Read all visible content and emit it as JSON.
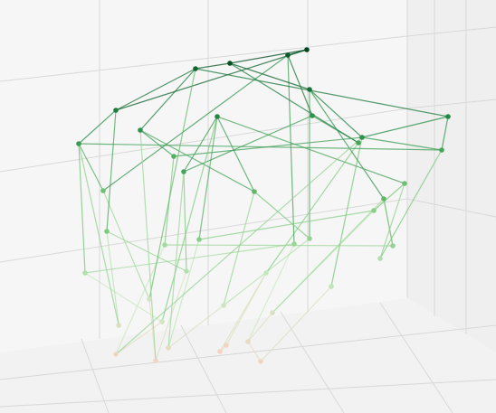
{
  "chart_data": {
    "type": "network3d",
    "zlim": [
      0,
      12.5
    ],
    "colorscale": [
      "#fdd0c0",
      "#c7e9c0",
      "#74c476",
      "#238b45",
      "#00441b"
    ],
    "nodes": [
      [
        2,
        1,
        1
      ],
      [
        3,
        2,
        0.5
      ],
      [
        4,
        0,
        1.5
      ],
      [
        5,
        3,
        0.8
      ],
      [
        3.5,
        1,
        2.2
      ],
      [
        6,
        2,
        1.2
      ],
      [
        2.5,
        3,
        2.5
      ],
      [
        4.5,
        4,
        0.3
      ],
      [
        5.5,
        1,
        2.8
      ],
      [
        7,
        0,
        1
      ],
      [
        1.8,
        2,
        1.8
      ],
      [
        6.5,
        3,
        2
      ],
      [
        1,
        1,
        4
      ],
      [
        8,
        2,
        5
      ],
      [
        3,
        3,
        4.5
      ],
      [
        9,
        1,
        3.5
      ],
      [
        5,
        0,
        5.5
      ],
      [
        10,
        3,
        4
      ],
      [
        6,
        4,
        3.2
      ],
      [
        2,
        0,
        5.8
      ],
      [
        7.5,
        2,
        4.8
      ],
      [
        11,
        1,
        5
      ],
      [
        4,
        2,
        3.8
      ],
      [
        9.5,
        4,
        5.5
      ],
      [
        0.5,
        2,
        8.5
      ],
      [
        2,
        1,
        10
      ],
      [
        4,
        3,
        11
      ],
      [
        6,
        0,
        12
      ],
      [
        8,
        2,
        10.5
      ],
      [
        10,
        1,
        9
      ],
      [
        12,
        3,
        8
      ],
      [
        11,
        0,
        7
      ],
      [
        3,
        4,
        7.5
      ],
      [
        5,
        2,
        9.5
      ],
      [
        7,
        3,
        11.5
      ],
      [
        9,
        4,
        8
      ],
      [
        1,
        3,
        6.5
      ],
      [
        6.5,
        1,
        7
      ],
      [
        12.5,
        2,
        9.5
      ],
      [
        4.5,
        0,
        8
      ],
      [
        8.5,
        0,
        12.5
      ],
      [
        10.5,
        4,
        6.5
      ],
      [
        2.5,
        2,
        9
      ],
      [
        7.5,
        4,
        9
      ]
    ],
    "edges": [
      [
        0,
        14
      ],
      [
        1,
        22
      ],
      [
        2,
        16
      ],
      [
        3,
        18
      ],
      [
        4,
        12
      ],
      [
        5,
        20
      ],
      [
        6,
        36
      ],
      [
        7,
        18
      ],
      [
        8,
        13
      ],
      [
        9,
        15
      ],
      [
        10,
        19
      ],
      [
        11,
        23
      ],
      [
        0,
        4
      ],
      [
        2,
        8
      ],
      [
        5,
        11
      ],
      [
        1,
        6
      ],
      [
        3,
        7
      ],
      [
        9,
        5
      ],
      [
        12,
        24
      ],
      [
        13,
        28
      ],
      [
        14,
        32
      ],
      [
        15,
        29
      ],
      [
        16,
        33
      ],
      [
        17,
        30
      ],
      [
        18,
        35
      ],
      [
        19,
        25
      ],
      [
        20,
        34
      ],
      [
        21,
        31
      ],
      [
        22,
        39
      ],
      [
        23,
        41
      ],
      [
        24,
        25
      ],
      [
        25,
        26
      ],
      [
        26,
        27
      ],
      [
        27,
        28
      ],
      [
        28,
        29
      ],
      [
        29,
        30
      ],
      [
        30,
        38
      ],
      [
        31,
        21
      ],
      [
        32,
        42
      ],
      [
        33,
        37
      ],
      [
        34,
        40
      ],
      [
        35,
        43
      ],
      [
        36,
        24
      ],
      [
        37,
        13
      ],
      [
        38,
        29
      ],
      [
        39,
        33
      ],
      [
        40,
        27
      ],
      [
        41,
        17
      ],
      [
        42,
        26
      ],
      [
        43,
        34
      ],
      [
        24,
        30
      ],
      [
        25,
        40
      ],
      [
        26,
        38
      ],
      [
        27,
        35
      ],
      [
        28,
        31
      ],
      [
        32,
        29
      ],
      [
        33,
        41
      ],
      [
        34,
        36
      ],
      [
        37,
        42
      ],
      [
        39,
        43
      ],
      [
        12,
        20
      ],
      [
        14,
        21
      ],
      [
        16,
        23
      ],
      [
        19,
        22
      ],
      [
        0,
        29
      ],
      [
        8,
        37
      ],
      [
        4,
        33
      ],
      [
        6,
        26
      ],
      [
        10,
        24
      ],
      [
        11,
        31
      ],
      [
        2,
        39
      ],
      [
        1,
        42
      ]
    ]
  }
}
